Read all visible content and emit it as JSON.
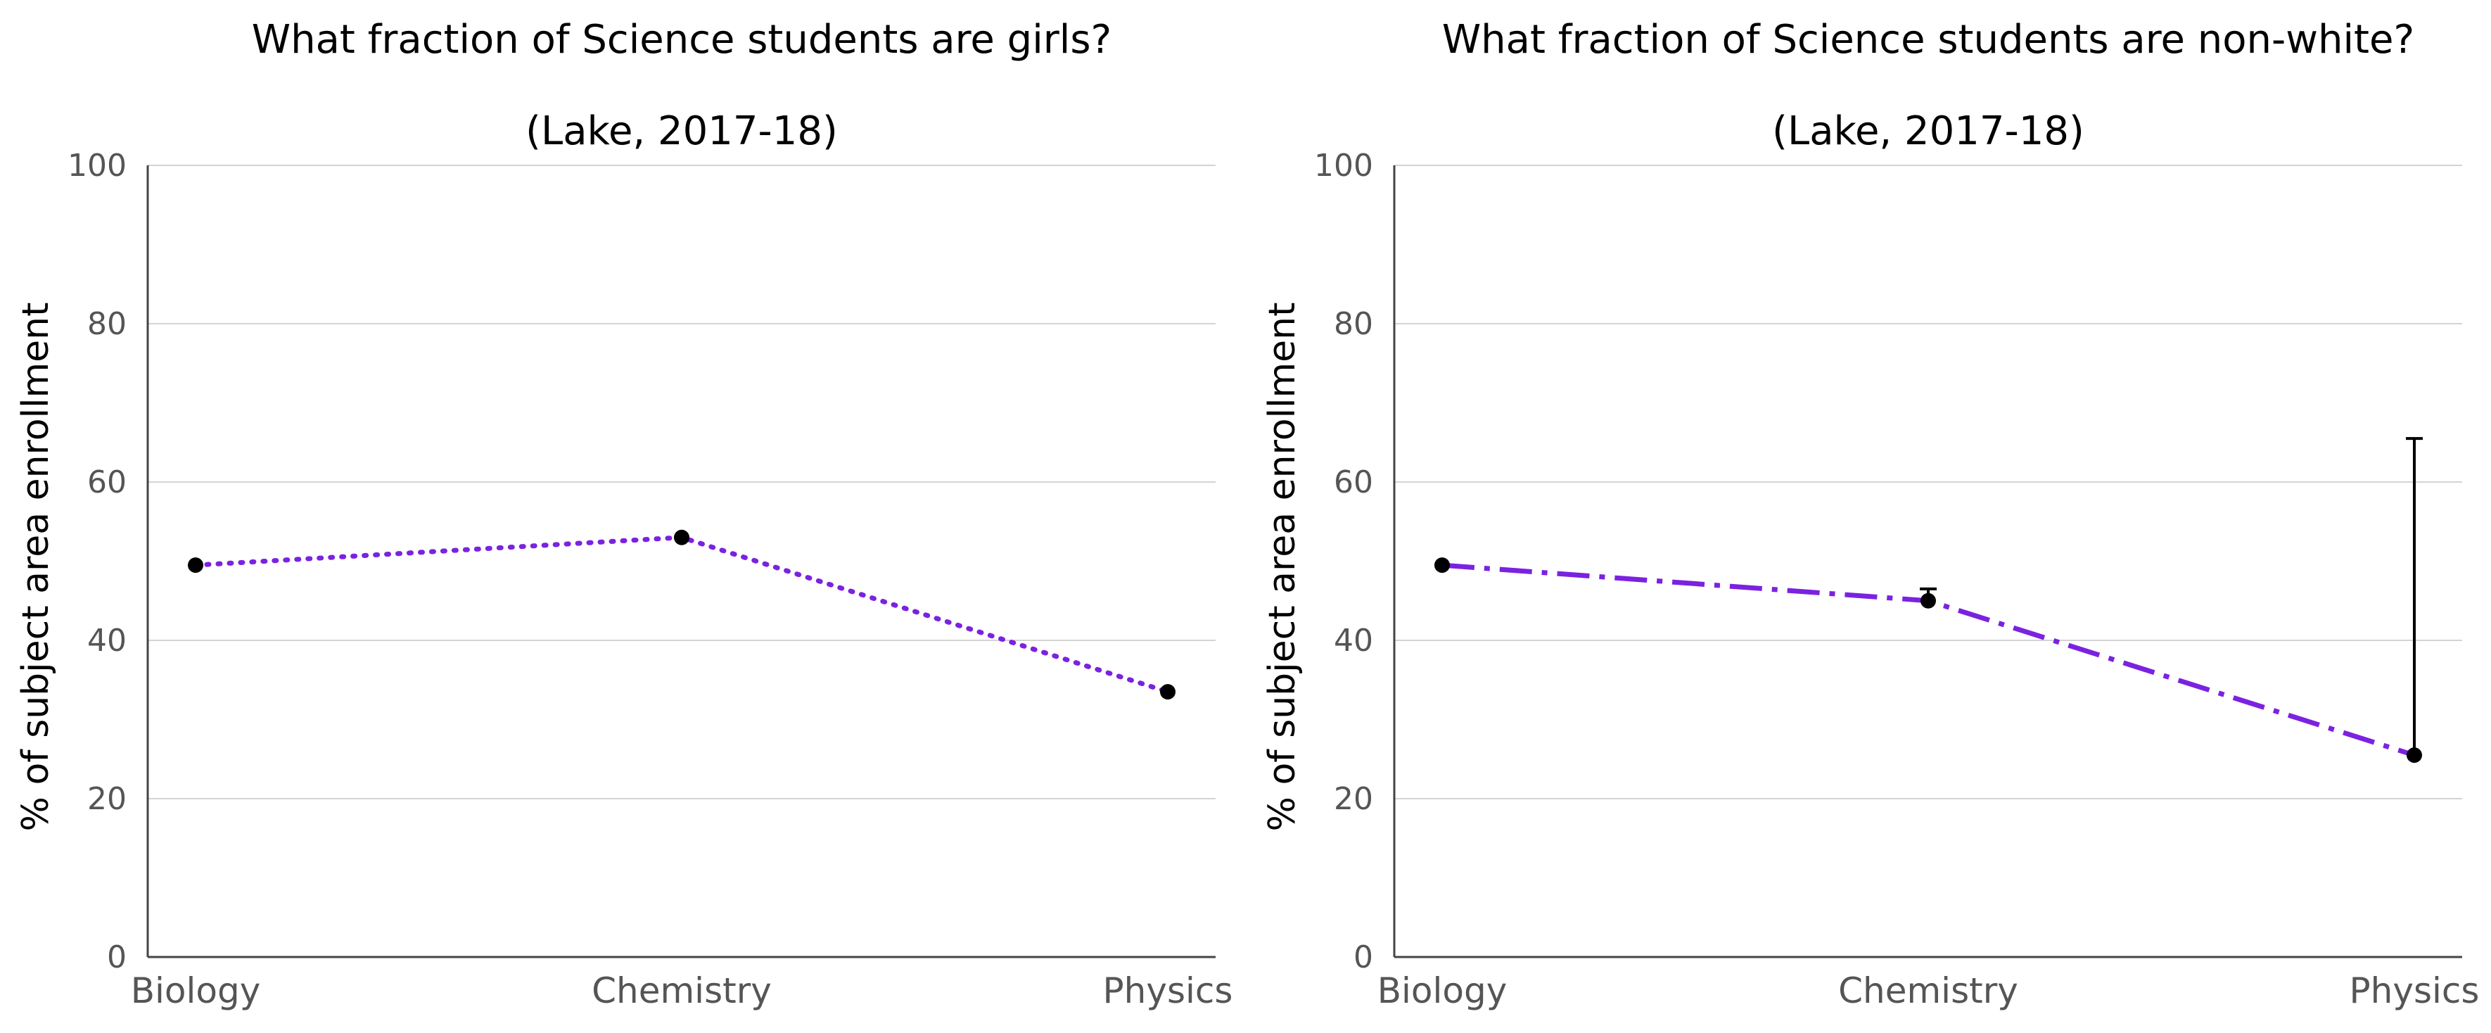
{
  "chart_data": [
    {
      "type": "line",
      "title": "What fraction of Science students are girls?",
      "subtitle": "(Lake, 2017-18)",
      "xlabel": "",
      "ylabel": "% of subject area enrollment",
      "categories": [
        "Biology",
        "Chemistry",
        "Physics"
      ],
      "ylim": [
        0,
        100
      ],
      "yticks": [
        0,
        20,
        40,
        60,
        80,
        100
      ],
      "grid": true,
      "series": [
        {
          "values": [
            49.5,
            53,
            33.5
          ],
          "color": "#7b22e0",
          "line_style": "dotted",
          "marker_color": "#000000",
          "error_bars": [
            null,
            null,
            null
          ]
        }
      ]
    },
    {
      "type": "line",
      "title": "What fraction of Science students are non-white?",
      "subtitle": "(Lake, 2017-18)",
      "xlabel": "",
      "ylabel": "% of subject area enrollment",
      "categories": [
        "Biology",
        "Chemistry",
        "Physics"
      ],
      "ylim": [
        0,
        100
      ],
      "yticks": [
        0,
        20,
        40,
        60,
        80,
        100
      ],
      "grid": true,
      "series": [
        {
          "values": [
            49.5,
            45,
            25.5
          ],
          "color": "#7b22e0",
          "line_style": "dash-dot",
          "marker_color": "#000000",
          "error_bars": [
            null,
            [
              45,
              46.5
            ],
            [
              25.5,
              65.5
            ]
          ]
        }
      ]
    }
  ]
}
